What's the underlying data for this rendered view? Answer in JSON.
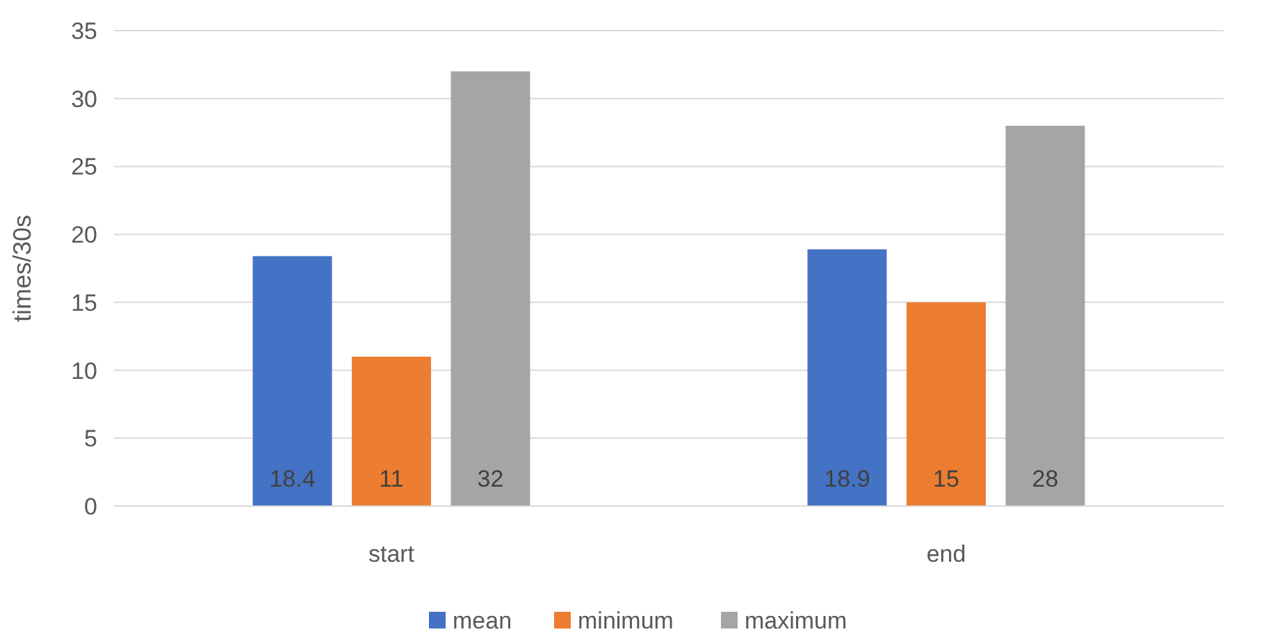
{
  "chart_data": {
    "type": "bar",
    "ylabel": "times/30s",
    "categories": [
      "start",
      "end"
    ],
    "series": [
      {
        "name": "mean",
        "color": "#4472c4",
        "values": [
          18.4,
          18.9
        ]
      },
      {
        "name": "minimum",
        "color": "#ed7d31",
        "values": [
          11,
          15
        ]
      },
      {
        "name": "maximum",
        "color": "#a5a5a5",
        "values": [
          32,
          28
        ]
      }
    ],
    "ylim": [
      0,
      35
    ],
    "yticks": [
      0,
      5,
      10,
      15,
      20,
      25,
      30,
      35
    ],
    "grid": "y",
    "legend": "bottom",
    "data_labels": true
  }
}
